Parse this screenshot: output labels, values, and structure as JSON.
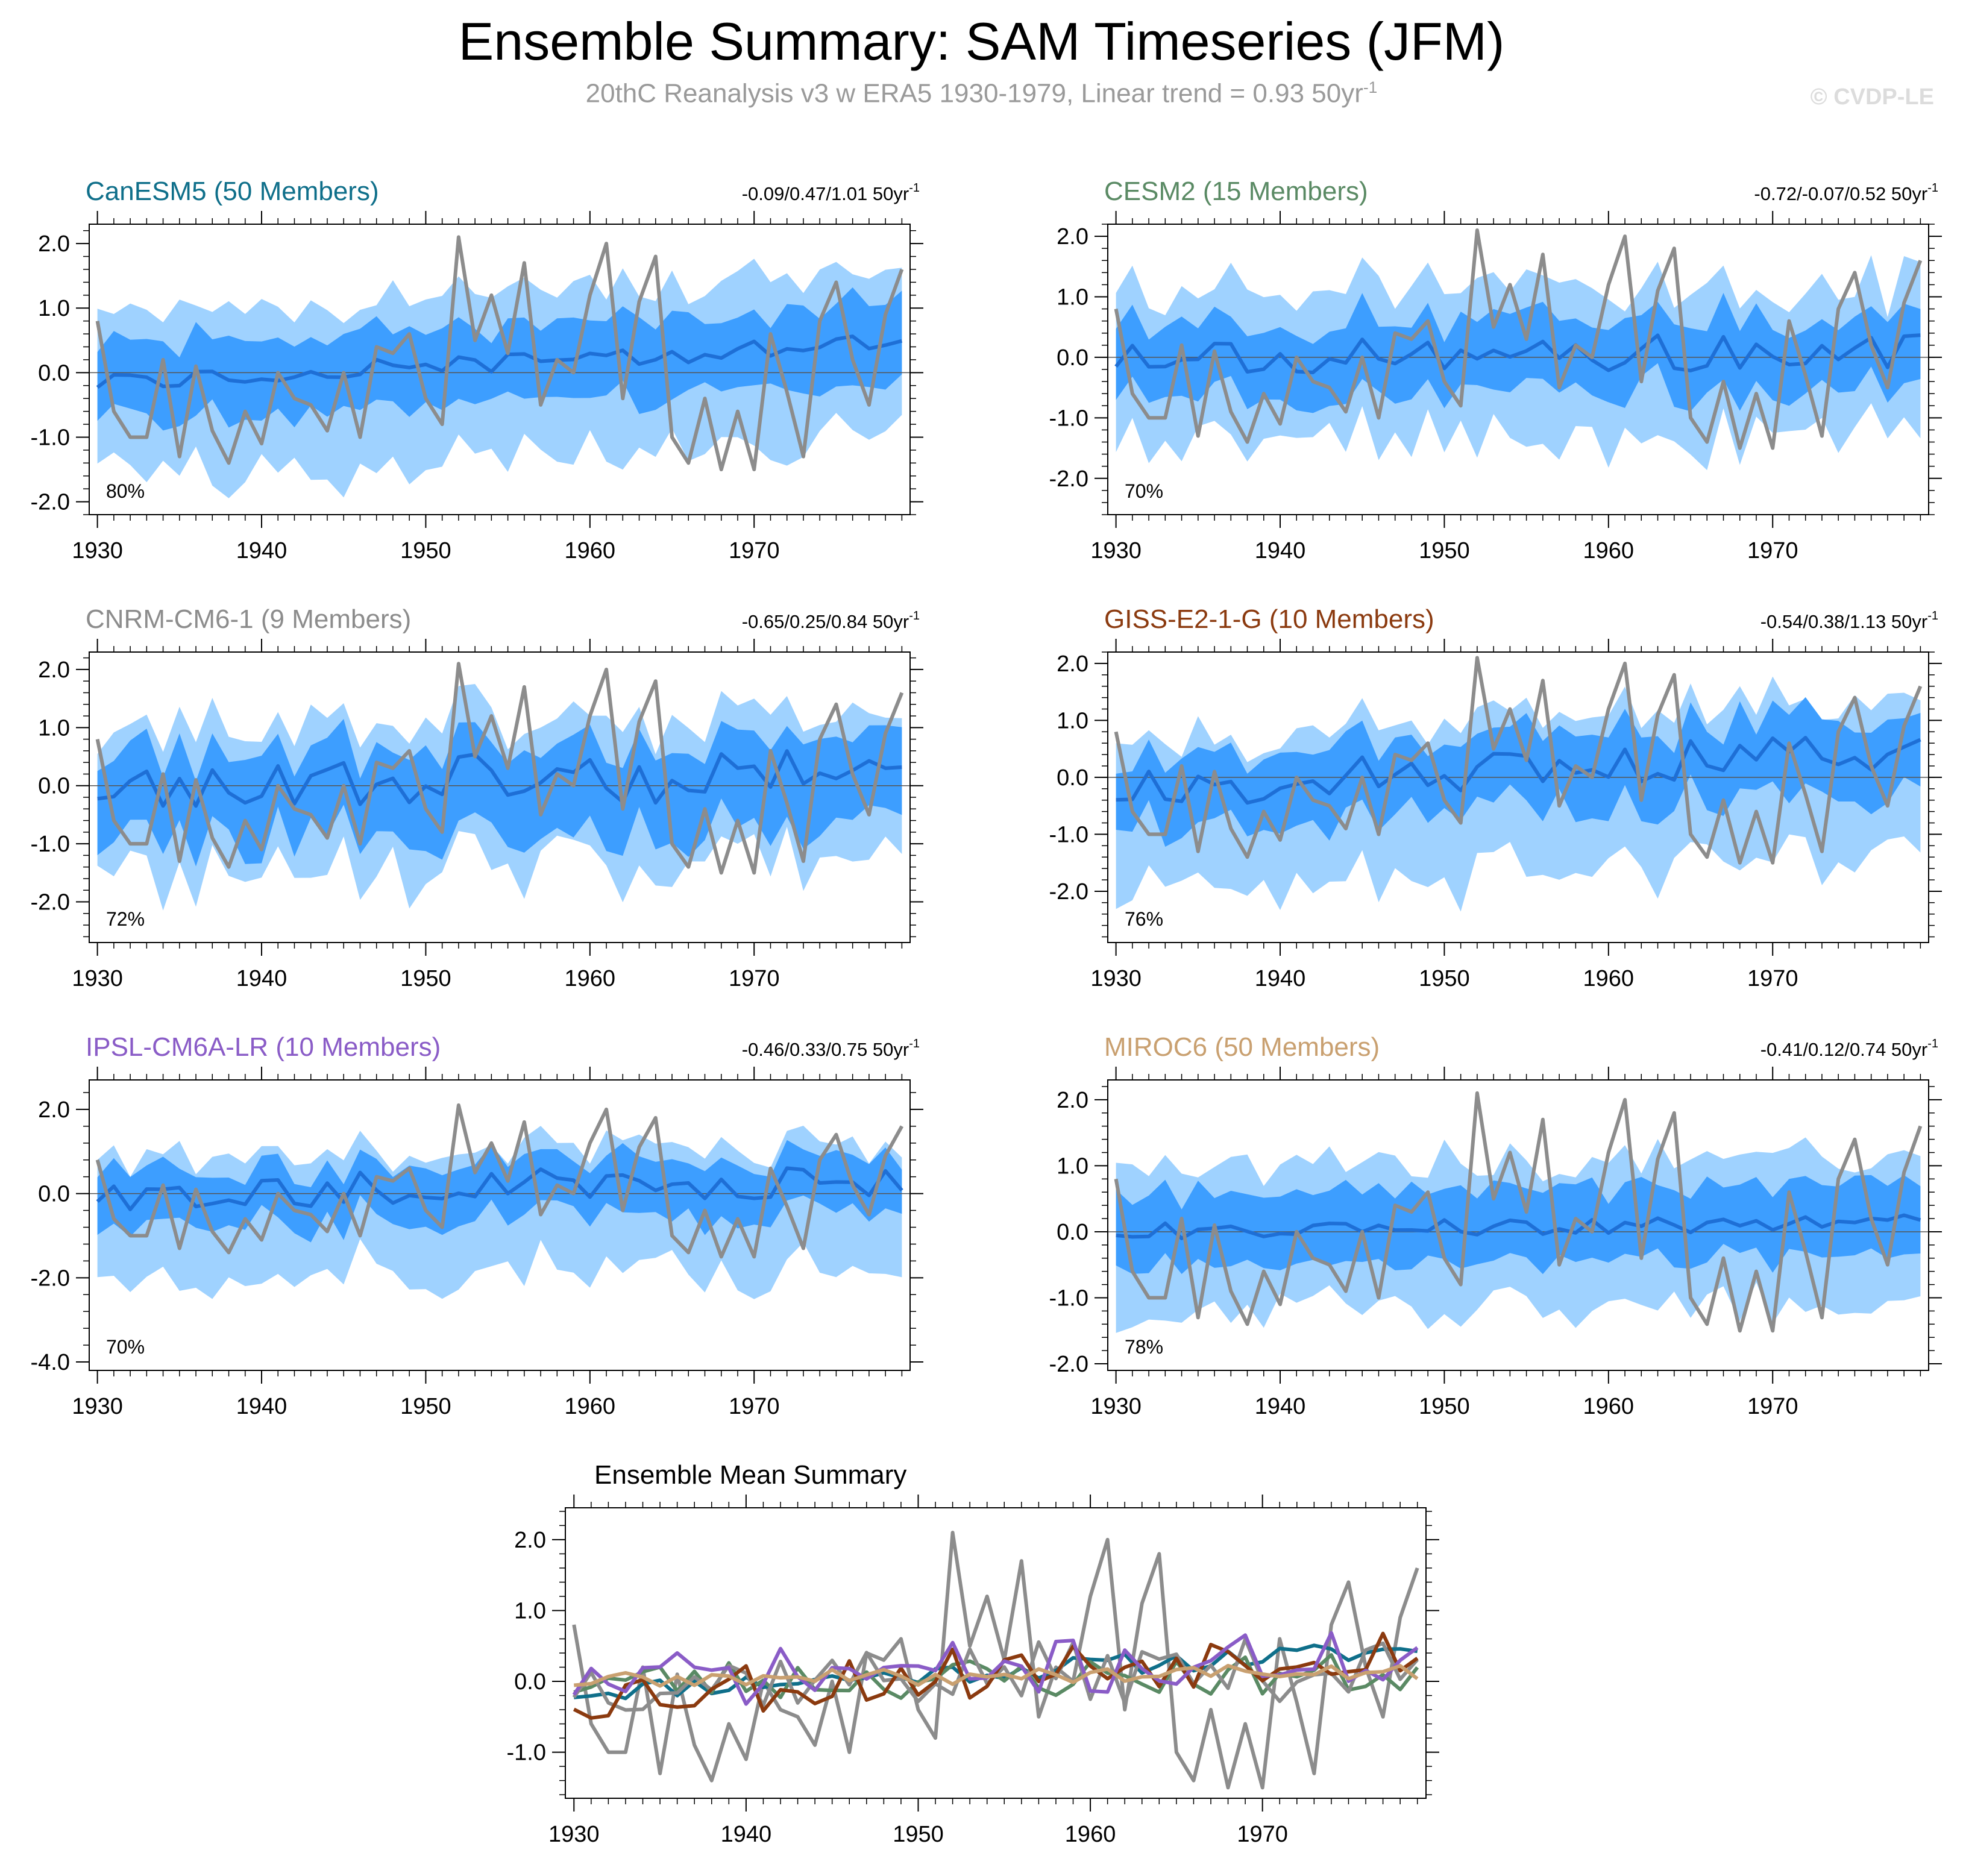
{
  "header": {
    "title": "Ensemble Summary: SAM Timeseries (JFM)",
    "subtitle": "20thC Reanalysis v3 w ERA5 1930-1979, Linear trend = 0.93 50yr",
    "subtitle_sup": "-1",
    "watermark": "© CVDP-LE"
  },
  "chart_data": [
    {
      "id": "canesm5",
      "type": "line",
      "title": "CanESM5 (50 Members)",
      "title_color": "#0f6f8a",
      "trend_text": "-0.09/0.47/1.01 50yr",
      "trend_sup": "-1",
      "percent": "80%",
      "ylim": [
        -2.2,
        2.3
      ],
      "yticks": [
        2.0,
        1.0,
        0.0,
        -1.0,
        -2.0
      ],
      "ytick_labels": [
        "2.0",
        "1.0",
        "0.0",
        "-1.0",
        "-2.0"
      ],
      "xlim": [
        1929.5,
        1979.5
      ],
      "xticks": [
        1930,
        1940,
        1950,
        1960,
        1970
      ],
      "xtick_labels": [
        "1930",
        "1940",
        "1950",
        "1960",
        "1970"
      ],
      "ens_mean_trend": [
        -0.15,
        0.45
      ],
      "mean_amp": 0.15,
      "inner_low": 0.6,
      "inner_high": 0.6,
      "outer_low": 1.5,
      "outer_high": 1.1,
      "seed": 11
    },
    {
      "id": "cesm2",
      "type": "line",
      "title": "CESM2 (15 Members)",
      "title_color": "#5a8a64",
      "trend_text": "-0.72/-0.07/0.52 50yr",
      "trend_sup": "-1",
      "percent": "70%",
      "ylim": [
        -2.6,
        2.2
      ],
      "yticks": [
        2.0,
        1.0,
        0.0,
        -1.0,
        -2.0
      ],
      "ytick_labels": [
        "2.0",
        "1.0",
        "0.0",
        "-1.0",
        "-2.0"
      ],
      "xlim": [
        1929.5,
        1979.5
      ],
      "xticks": [
        1930,
        1940,
        1950,
        1960,
        1970
      ],
      "xtick_labels": [
        "1930",
        "1940",
        "1950",
        "1960",
        "1970"
      ],
      "ens_mean_trend": [
        0.0,
        0.1
      ],
      "mean_amp": 0.3,
      "inner_low": 0.6,
      "inner_high": 0.6,
      "outer_low": 1.4,
      "outer_high": 1.1,
      "seed": 23
    },
    {
      "id": "cnrm",
      "type": "line",
      "title": "CNRM-CM6-1 (9 Members)",
      "title_color": "#8c8c8c",
      "trend_text": "-0.65/0.25/0.84 50yr",
      "trend_sup": "-1",
      "percent": "72%",
      "ylim": [
        -2.7,
        2.3
      ],
      "yticks": [
        2.0,
        1.0,
        0.0,
        -1.0,
        -2.0
      ],
      "ytick_labels": [
        "2.0",
        "1.0",
        "0.0",
        "-1.0",
        "-2.0"
      ],
      "xlim": [
        1929.5,
        1979.5
      ],
      "xticks": [
        1930,
        1940,
        1950,
        1960,
        1970
      ],
      "xtick_labels": [
        "1930",
        "1940",
        "1950",
        "1960",
        "1970"
      ],
      "ens_mean_trend": [
        0.0,
        0.2
      ],
      "mean_amp": 0.45,
      "inner_low": 0.9,
      "inner_high": 0.6,
      "outer_low": 1.5,
      "outer_high": 1.0,
      "seed": 37
    },
    {
      "id": "giss",
      "type": "line",
      "title": "GISS-E2-1-G (10 Members)",
      "title_color": "#8b3a0f",
      "trend_text": "-0.54/0.38/1.13 50yr",
      "trend_sup": "-1",
      "percent": "76%",
      "ylim": [
        -2.9,
        2.2
      ],
      "yticks": [
        2.0,
        1.0,
        0.0,
        -1.0,
        -2.0
      ],
      "ytick_labels": [
        "2.0",
        "1.0",
        "0.0",
        "-1.0",
        "-2.0"
      ],
      "xlim": [
        1929.5,
        1979.5
      ],
      "xticks": [
        1930,
        1940,
        1950,
        1960,
        1970
      ],
      "xtick_labels": [
        "1930",
        "1940",
        "1950",
        "1960",
        "1970"
      ],
      "ens_mean_trend": [
        -0.2,
        0.5
      ],
      "mean_amp": 0.4,
      "inner_low": 0.7,
      "inner_high": 0.6,
      "outer_low": 1.8,
      "outer_high": 0.9,
      "seed": 53
    },
    {
      "id": "ipsl",
      "type": "line",
      "title": "IPSL-CM6A-LR (10 Members)",
      "title_color": "#8a5cc7",
      "trend_text": "-0.46/0.33/0.75 50yr",
      "trend_sup": "-1",
      "percent": "70%",
      "ylim": [
        -4.2,
        2.7
      ],
      "yticks": [
        2.0,
        0.0,
        -2.0,
        -4.0
      ],
      "ytick_labels": [
        "2.0",
        "0.0",
        "-2.0",
        "-4.0"
      ],
      "xlim": [
        1929.5,
        1979.5
      ],
      "xticks": [
        1930,
        1940,
        1950,
        1960,
        1970
      ],
      "xtick_labels": [
        "1930",
        "1940",
        "1950",
        "1960",
        "1970"
      ],
      "ens_mean_trend": [
        0.0,
        0.35
      ],
      "mean_amp": 0.4,
      "inner_low": 0.7,
      "inner_high": 0.6,
      "outer_low": 2.0,
      "outer_high": 0.9,
      "seed": 71
    },
    {
      "id": "miroc6",
      "type": "line",
      "title": "MIROC6 (50 Members)",
      "title_color": "#c9a070",
      "trend_text": "-0.41/0.12/0.74 50yr",
      "trend_sup": "-1",
      "percent": "78%",
      "ylim": [
        -2.1,
        2.3
      ],
      "yticks": [
        2.0,
        1.0,
        0.0,
        -1.0,
        -2.0
      ],
      "ytick_labels": [
        "2.0",
        "1.0",
        "0.0",
        "-1.0",
        "-2.0"
      ],
      "xlim": [
        1929.5,
        1979.5
      ],
      "xticks": [
        1930,
        1940,
        1950,
        1960,
        1970
      ],
      "xtick_labels": [
        "1930",
        "1940",
        "1950",
        "1960",
        "1970"
      ],
      "ens_mean_trend": [
        0.0,
        0.15
      ],
      "mean_amp": 0.12,
      "inner_low": 0.5,
      "inner_high": 0.6,
      "outer_low": 1.2,
      "outer_high": 1.0,
      "seed": 89
    },
    {
      "id": "summary",
      "type": "line",
      "title": "Ensemble Mean Summary",
      "title_color": "#000000",
      "ylim": [
        -1.65,
        2.45
      ],
      "yticks": [
        2.0,
        1.0,
        0.0,
        -1.0
      ],
      "ytick_labels": [
        "2.0",
        "1.0",
        "0.0",
        "-1.0"
      ],
      "xlim": [
        1929.5,
        1979.5
      ],
      "xticks": [
        1930,
        1940,
        1950,
        1960,
        1970
      ],
      "xtick_labels": [
        "1930",
        "1940",
        "1950",
        "1960",
        "1970"
      ],
      "series_colors": [
        "#8c8c8c",
        "#0f6f8a",
        "#5a8a64",
        "#8c8c8c",
        "#8b3a0f",
        "#8a5cc7",
        "#c9a070"
      ]
    }
  ],
  "observations": {
    "name": "20thC Reanalysis v3 w ERA5",
    "color": "#8c8c8c",
    "years": [
      1930,
      1931,
      1932,
      1933,
      1934,
      1935,
      1936,
      1937,
      1938,
      1939,
      1940,
      1941,
      1942,
      1943,
      1944,
      1945,
      1946,
      1947,
      1948,
      1949,
      1950,
      1951,
      1952,
      1953,
      1954,
      1955,
      1956,
      1957,
      1958,
      1959,
      1960,
      1961,
      1962,
      1963,
      1964,
      1965,
      1966,
      1967,
      1968,
      1969,
      1970,
      1971,
      1972,
      1973,
      1974,
      1975,
      1976,
      1977,
      1978,
      1979
    ],
    "values": [
      0.8,
      -0.6,
      -1.0,
      -1.0,
      0.2,
      -1.3,
      0.1,
      -0.9,
      -1.4,
      -0.6,
      -1.1,
      0.0,
      -0.4,
      -0.5,
      -0.9,
      0.0,
      -1.0,
      0.4,
      0.3,
      0.6,
      -0.4,
      -0.8,
      2.1,
      0.5,
      1.2,
      0.3,
      1.7,
      -0.5,
      0.2,
      0.0,
      1.2,
      2.0,
      -0.4,
      1.1,
      1.8,
      -1.0,
      -1.4,
      -0.4,
      -1.5,
      -0.6,
      -1.5,
      0.6,
      -0.3,
      -1.3,
      0.8,
      1.4,
      0.2,
      -0.5,
      0.9,
      1.6
    ]
  }
}
